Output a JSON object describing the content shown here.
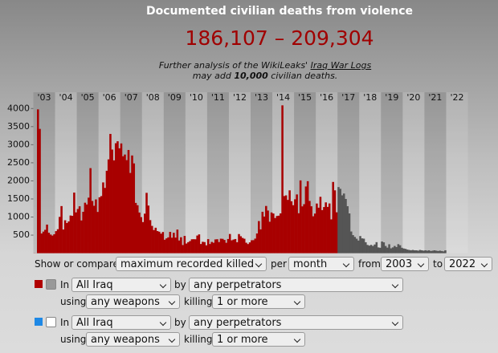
{
  "header": {
    "title": "Documented civilian deaths from violence",
    "range": "186,107 – 209,304",
    "note": [
      "Further analysis of the WikiLeaks' ",
      "Iraq War Logs",
      "may add ",
      "10,000",
      " civilian deaths."
    ]
  },
  "chart_data": {
    "type": "bar",
    "categories": [
      "'03",
      "'04",
      "'05",
      "'06",
      "'07",
      "'08",
      "'09",
      "'10",
      "'11",
      "'12",
      "'13",
      "'14",
      "'15",
      "'16",
      "'17",
      "'18",
      "'19",
      "'20",
      "'21",
      "'22"
    ],
    "values": [
      [
        3,
        2,
        3977,
        3437,
        545,
        597,
        646,
        791,
        566,
        516,
        487,
        524
      ],
      [
        610,
        663,
        1004,
        1303,
        655,
        910,
        834,
        878,
        1042,
        1033,
        1676,
        1129
      ],
      [
        1222,
        1297,
        905,
        1145,
        1396,
        1347,
        1536,
        2352,
        1444,
        1311,
        1487,
        1141
      ],
      [
        1546,
        1579,
        1957,
        1805,
        2279,
        2594,
        3298,
        2865,
        2567,
        3041,
        3095,
        2900
      ],
      [
        3035,
        2680,
        2728,
        2573,
        2854,
        2219,
        2702,
        2483,
        1391,
        1326,
        1124,
        997
      ],
      [
        861,
        1093,
        1669,
        1317,
        915,
        755,
        640,
        704,
        612,
        594,
        540,
        586
      ],
      [
        372,
        409,
        438,
        590,
        428,
        564,
        431,
        653,
        352,
        441,
        226,
        478
      ],
      [
        267,
        305,
        336,
        385,
        387,
        385,
        488,
        520,
        254,
        315,
        307,
        218
      ],
      [
        389,
        254,
        311,
        289,
        381,
        386,
        308,
        401,
        397,
        366,
        288,
        392
      ],
      [
        531,
        356,
        377,
        392,
        304,
        529,
        469,
        422,
        400,
        290,
        253,
        299
      ],
      [
        357,
        360,
        403,
        545,
        888,
        659,
        1145,
        1013,
        1306,
        1180,
        870,
        1126
      ],
      [
        1097,
        972,
        1029,
        1037,
        1100,
        4088,
        1580,
        1599,
        1474,
        1738,
        1436,
        1327
      ],
      [
        1490,
        1625,
        1105,
        2013,
        1295,
        1355,
        1845,
        1991,
        1445,
        1297,
        1021,
        1096
      ],
      [
        1374,
        1258,
        1559,
        1192,
        1276,
        1405,
        1280,
        1375,
        935,
        1970,
        1738,
        1131
      ],
      [
        1829,
        1780,
        1600,
        1650,
        1500,
        1300,
        1100,
        600,
        500,
        450,
        400,
        350
      ],
      [
        474,
        410,
        402,
        303,
        229,
        209,
        230,
        201,
        241,
        305,
        160,
        150
      ],
      [
        323,
        300,
        200,
        154,
        247,
        135,
        160,
        200,
        170,
        250,
        220,
        150
      ],
      [
        130,
        120,
        100,
        90,
        80,
        90,
        80,
        80,
        70,
        90,
        80,
        70
      ],
      [
        80,
        70,
        80,
        60,
        70,
        80,
        70,
        60,
        70,
        60,
        50,
        80
      ],
      []
    ],
    "colors": [
      "#a80000",
      "#a80000",
      "#a80000",
      "#a80000",
      "#a80000",
      "#a80000",
      "#a80000",
      "#a80000",
      "#a80000",
      "#a80000",
      "#a80000",
      "#a80000",
      "#a80000",
      "#a80000",
      "#555555",
      "#555555",
      "#555555",
      "#555555",
      "#555555",
      "#555555"
    ],
    "ylim": [
      0,
      4450
    ],
    "yticks": [
      500,
      1000,
      1500,
      2000,
      2500,
      3000,
      3500,
      4000
    ]
  },
  "controls": {
    "show_label": "Show or compare",
    "measure": "maximum recorded killed",
    "per_label": "per",
    "period": "month",
    "from_label": "from",
    "from": "2003",
    "to_label": "to",
    "to": "2022",
    "rows": [
      {
        "color": "#b00000",
        "checked": true,
        "in_label": "In",
        "area": "All Iraq",
        "by_label": "by",
        "perpetrator": "any perpetrators",
        "using_label": "using",
        "weapon": "any weapons",
        "killing_label": "killing",
        "killed": "1 or more"
      },
      {
        "color": "#1e88e5",
        "checked": false,
        "in_label": "In",
        "area": "All Iraq",
        "by_label": "by",
        "perpetrator": "any perpetrators",
        "using_label": "using",
        "weapon": "any weapons",
        "killing_label": "killing",
        "killed": "1 or more"
      }
    ]
  }
}
